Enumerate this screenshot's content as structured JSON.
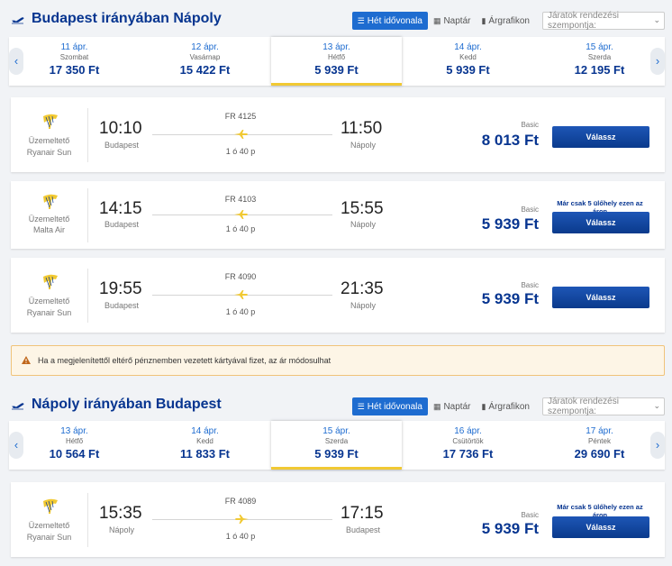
{
  "sections": [
    {
      "title": "Budapest irányában Nápoly",
      "view_buttons": [
        "Hét idővonala",
        "Naptár",
        "Árgrafikon"
      ],
      "sort_placeholder": "Járatok rendezési szempontja:",
      "dates": [
        {
          "date": "11 ápr.",
          "day": "Szombat",
          "price": "17 350 Ft"
        },
        {
          "date": "12 ápr.",
          "day": "Vasárnap",
          "price": "15 422 Ft"
        },
        {
          "date": "13 ápr.",
          "day": "Hétfő",
          "price": "5 939 Ft"
        },
        {
          "date": "14 ápr.",
          "day": "Kedd",
          "price": "5 939 Ft"
        },
        {
          "date": "15 ápr.",
          "day": "Szerda",
          "price": "12 195 Ft"
        }
      ],
      "flights": [
        {
          "operator_label": "Üzemeltető",
          "operator": "Ryanair Sun",
          "flight_no": "FR 4125",
          "dep_time": "10:10",
          "dep_city": "Budapest",
          "arr_time": "11:50",
          "arr_city": "Nápoly",
          "duration": "1 ó 40 p",
          "fare": "Basic",
          "price": "8 013 Ft",
          "seats": "",
          "button": "Válassz"
        },
        {
          "operator_label": "Üzemeltető",
          "operator": "Malta Air",
          "flight_no": "FR 4103",
          "dep_time": "14:15",
          "dep_city": "Budapest",
          "arr_time": "15:55",
          "arr_city": "Nápoly",
          "duration": "1 ó 40 p",
          "fare": "Basic",
          "price": "5 939 Ft",
          "seats": "Már csak 5 ülőhely ezen az áron",
          "button": "Válassz"
        },
        {
          "operator_label": "Üzemeltető",
          "operator": "Ryanair Sun",
          "flight_no": "FR 4090",
          "dep_time": "19:55",
          "dep_city": "Budapest",
          "arr_time": "21:35",
          "arr_city": "Nápoly",
          "duration": "1 ó 40 p",
          "fare": "Basic",
          "price": "5 939 Ft",
          "seats": "",
          "button": "Válassz"
        }
      ]
    },
    {
      "title": "Nápoly irányában Budapest",
      "view_buttons": [
        "Hét idővonala",
        "Naptár",
        "Árgrafikon"
      ],
      "sort_placeholder": "Járatok rendezési szempontja:",
      "dates": [
        {
          "date": "13 ápr.",
          "day": "Hétfő",
          "price": "10 564 Ft"
        },
        {
          "date": "14 ápr.",
          "day": "Kedd",
          "price": "11 833 Ft"
        },
        {
          "date": "15 ápr.",
          "day": "Szerda",
          "price": "5 939 Ft"
        },
        {
          "date": "16 ápr.",
          "day": "Csütörtök",
          "price": "17 736 Ft"
        },
        {
          "date": "17 ápr.",
          "day": "Péntek",
          "price": "29 690 Ft"
        }
      ],
      "flights": [
        {
          "operator_label": "Üzemeltető",
          "operator": "Ryanair Sun",
          "flight_no": "FR 4089",
          "dep_time": "15:35",
          "dep_city": "Nápoly",
          "arr_time": "17:15",
          "arr_city": "Budapest",
          "duration": "1 ó 40 p",
          "fare": "Basic",
          "price": "5 939 Ft",
          "seats": "Már csak 5 ülőhely ezen az áron",
          "button": "Válassz"
        }
      ]
    }
  ],
  "warning": "Ha a megjelenítettől eltérő pénznemben vezetett kártyával fizet, az ár módosulhat",
  "colors": {
    "brand": "#073590",
    "accent": "#1e6cd0",
    "highlight": "#f1c933",
    "warning_bg": "#fdf5e6"
  }
}
